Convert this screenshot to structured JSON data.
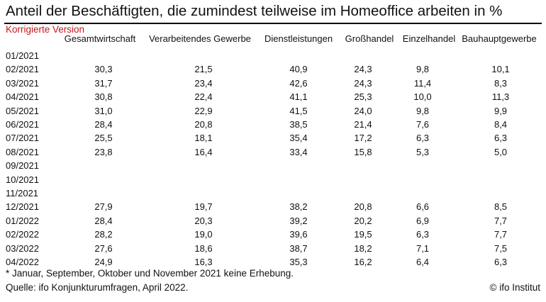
{
  "title": "Anteil der Beschäftigten, die zumindest teilweise im Homeoffice arbeiten in %",
  "subtitle": "Korrigierte Version",
  "footnote": "* Januar, September, Oktober und November 2021 keine Erhebung.",
  "source": "Quelle: ifo Konjunkturumfragen, April 2022.",
  "copyright": "© ifo Institut",
  "accent_color": "#c0181d",
  "chart_data": {
    "type": "table",
    "columns": [
      "Gesamtwirtschaft",
      "Verarbeitendes Gewerbe",
      "Dienstleistungen",
      "Großhandel",
      "Einzelhandel",
      "Bauhauptgewerbe"
    ],
    "rows": [
      {
        "date": "01/2021",
        "values": [
          "",
          "",
          "",
          "",
          "",
          ""
        ]
      },
      {
        "date": "02/2021",
        "values": [
          "30,3",
          "21,5",
          "40,9",
          "24,3",
          "9,8",
          "10,1"
        ]
      },
      {
        "date": "03/2021",
        "values": [
          "31,7",
          "23,4",
          "42,6",
          "24,3",
          "11,4",
          "8,3"
        ]
      },
      {
        "date": "04/2021",
        "values": [
          "30,8",
          "22,4",
          "41,1",
          "25,3",
          "10,0",
          "11,3"
        ]
      },
      {
        "date": "05/2021",
        "values": [
          "31,0",
          "22,9",
          "41,5",
          "24,0",
          "9,8",
          "9,9"
        ]
      },
      {
        "date": "06/2021",
        "values": [
          "28,4",
          "20,8",
          "38,5",
          "21,4",
          "7,6",
          "8,4"
        ]
      },
      {
        "date": "07/2021",
        "values": [
          "25,5",
          "18,1",
          "35,4",
          "17,2",
          "6,3",
          "6,3"
        ]
      },
      {
        "date": "08/2021",
        "values": [
          "23,8",
          "16,4",
          "33,4",
          "15,8",
          "5,3",
          "5,0"
        ]
      },
      {
        "date": "09/2021",
        "values": [
          "",
          "",
          "",
          "",
          "",
          ""
        ]
      },
      {
        "date": "10/2021",
        "values": [
          "",
          "",
          "",
          "",
          "",
          ""
        ]
      },
      {
        "date": "11/2021",
        "values": [
          "",
          "",
          "",
          "",
          "",
          ""
        ]
      },
      {
        "date": "12/2021",
        "values": [
          "27,9",
          "19,7",
          "38,2",
          "20,8",
          "6,6",
          "8,5"
        ]
      },
      {
        "date": "01/2022",
        "values": [
          "28,4",
          "20,3",
          "39,2",
          "20,2",
          "6,9",
          "7,7"
        ]
      },
      {
        "date": "02/2022",
        "values": [
          "28,2",
          "19,0",
          "39,6",
          "19,5",
          "6,3",
          "7,7"
        ]
      },
      {
        "date": "03/2022",
        "values": [
          "27,6",
          "18,6",
          "38,7",
          "18,2",
          "7,1",
          "7,5"
        ]
      },
      {
        "date": "04/2022",
        "values": [
          "24,9",
          "16,3",
          "35,3",
          "16,2",
          "6,4",
          "6,3"
        ]
      }
    ]
  }
}
